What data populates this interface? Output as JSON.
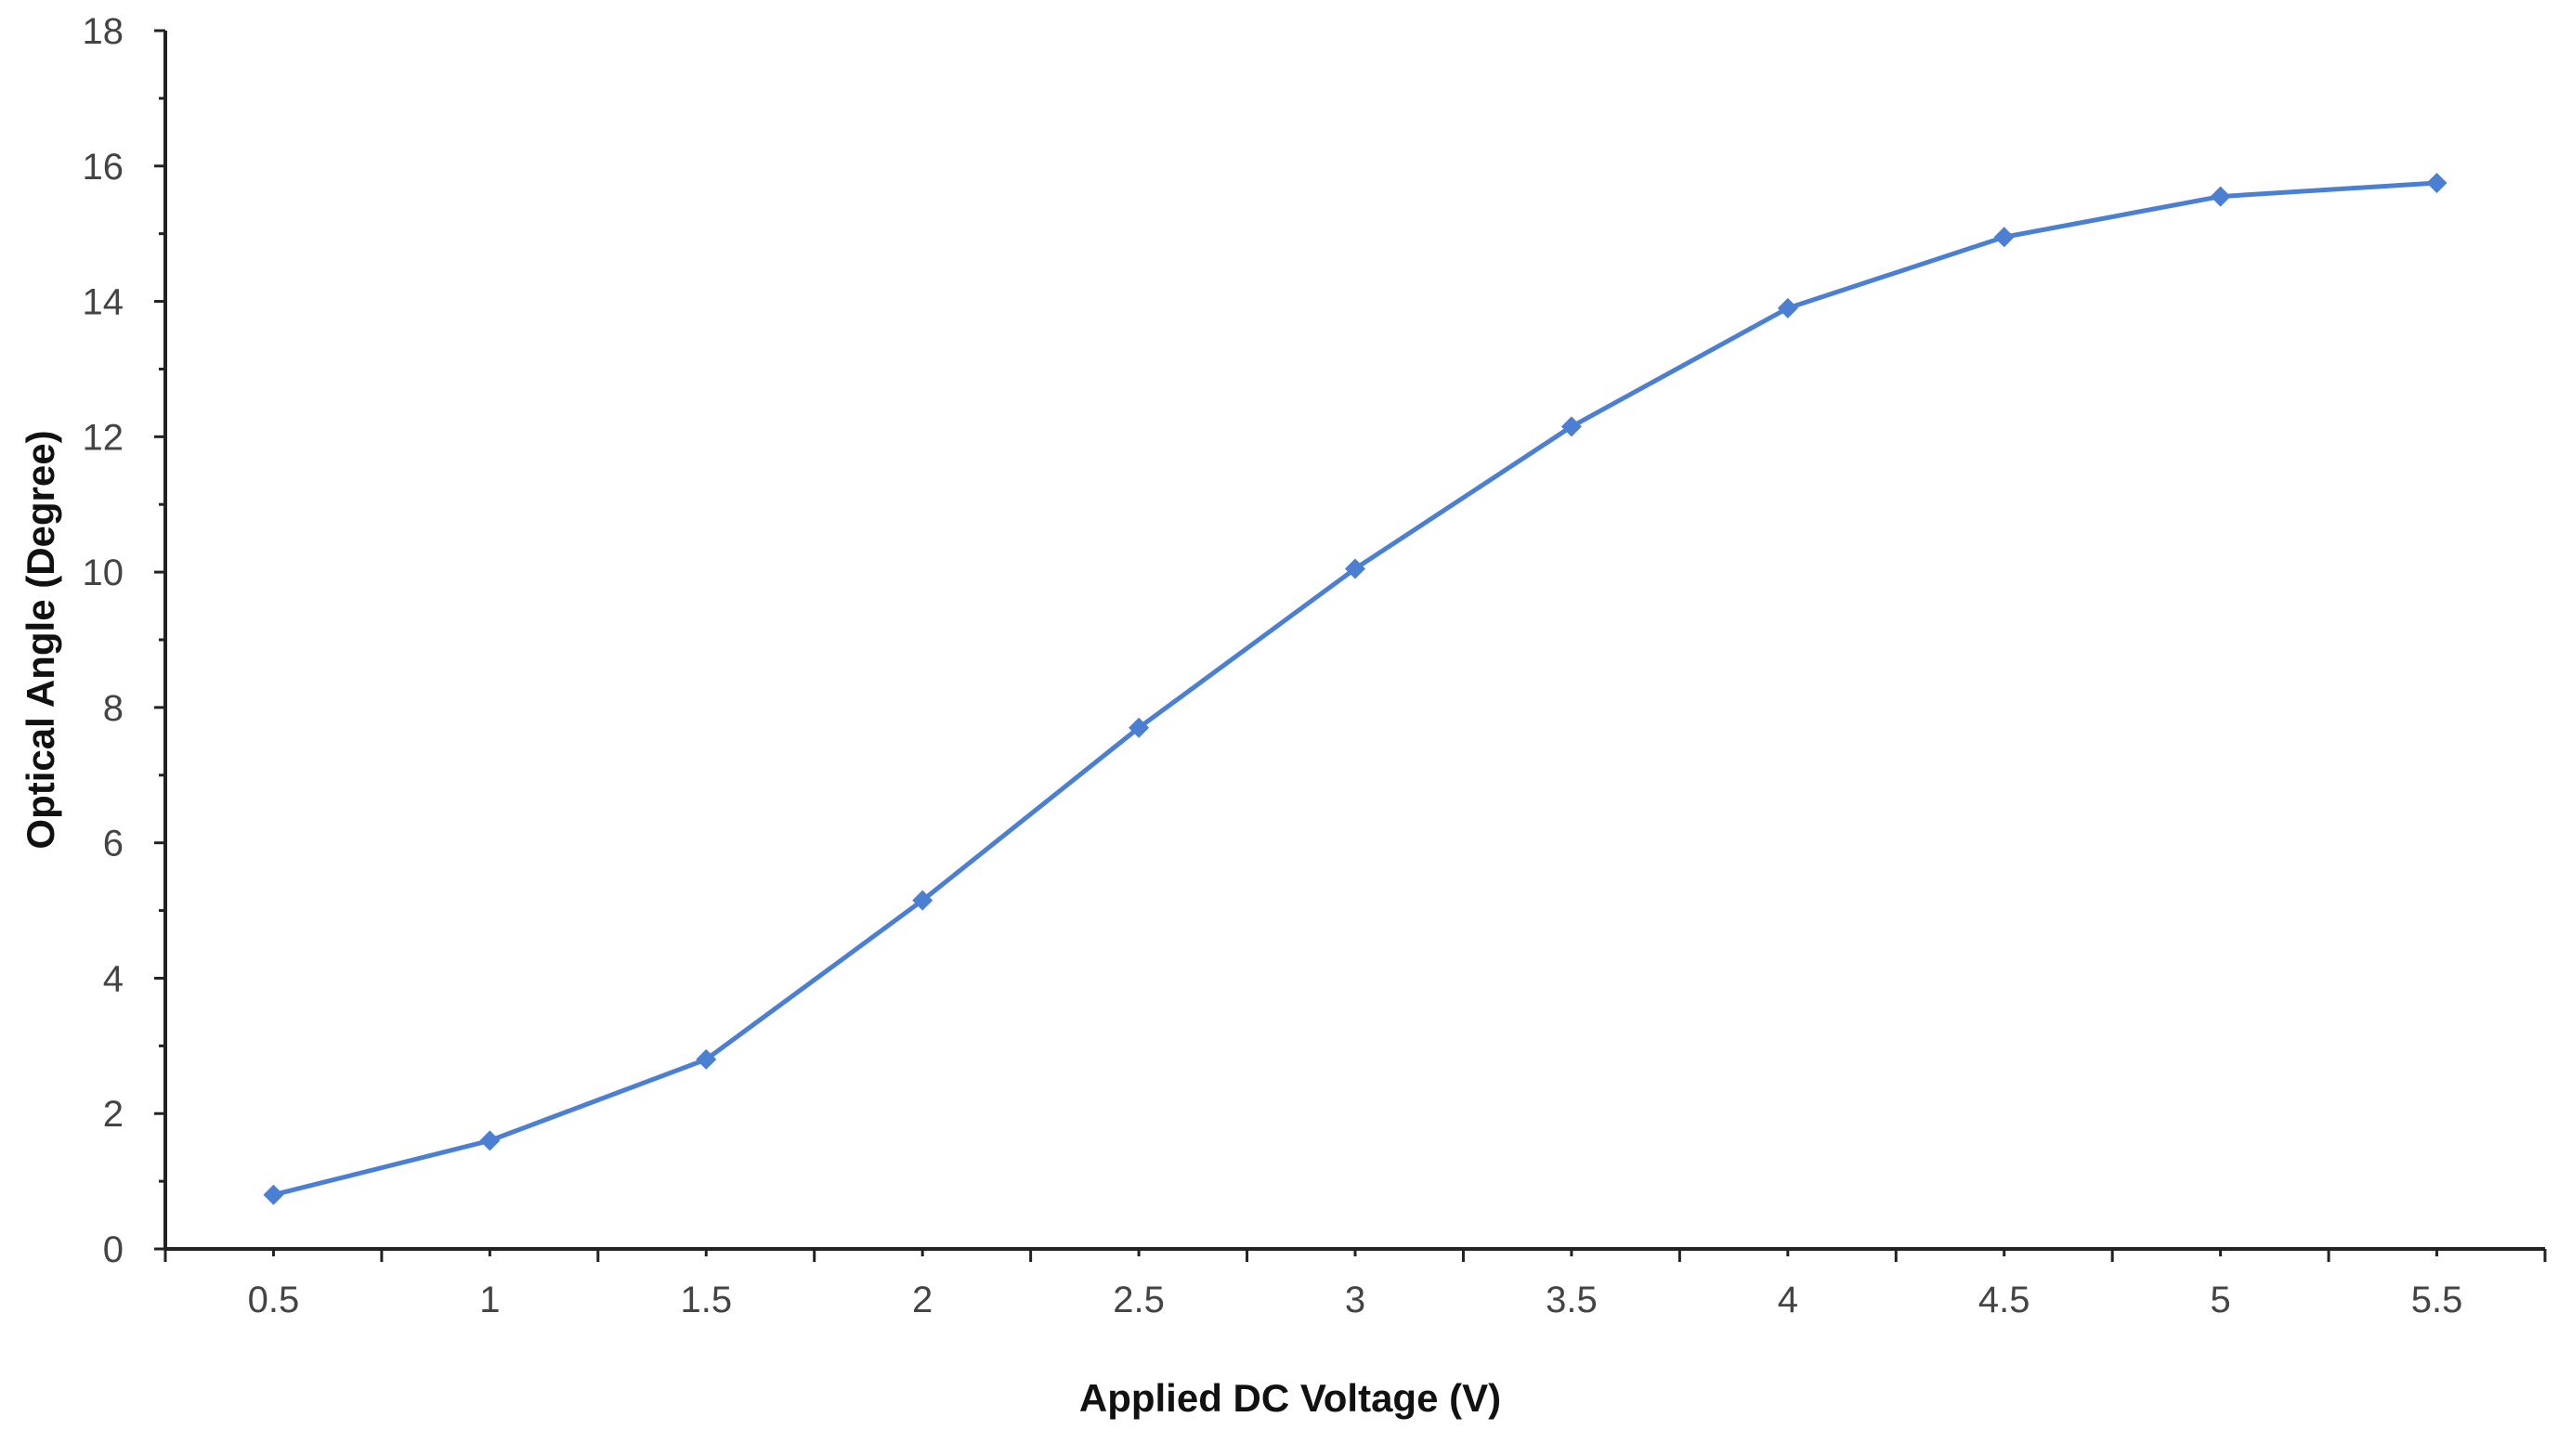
{
  "chart_data": {
    "type": "line",
    "xlabel": "Applied DC Voltage (V)",
    "ylabel": "Optical Angle (Degree)",
    "x": [
      0.5,
      1,
      1.5,
      2,
      2.5,
      3,
      3.5,
      4,
      4.5,
      5,
      5.5
    ],
    "xtick_labels": [
      "0.5",
      "1",
      "1.5",
      "2",
      "2.5",
      "3",
      "3.5",
      "4",
      "4.5",
      "5",
      "5.5"
    ],
    "ylim": [
      0,
      18
    ],
    "yticks": [
      0,
      2,
      4,
      6,
      8,
      10,
      12,
      14,
      16,
      18
    ],
    "ytick_labels": [
      "0",
      "2",
      "4",
      "6",
      "8",
      "10",
      "12",
      "14",
      "16",
      "18"
    ],
    "grid": false,
    "legend": "none",
    "marker": "diamond",
    "series": [
      {
        "values": [
          0.8,
          1.6,
          2.8,
          5.15,
          7.7,
          10.05,
          12.15,
          13.9,
          14.95,
          15.55,
          15.75
        ],
        "color": "#4a7fd4"
      }
    ]
  }
}
